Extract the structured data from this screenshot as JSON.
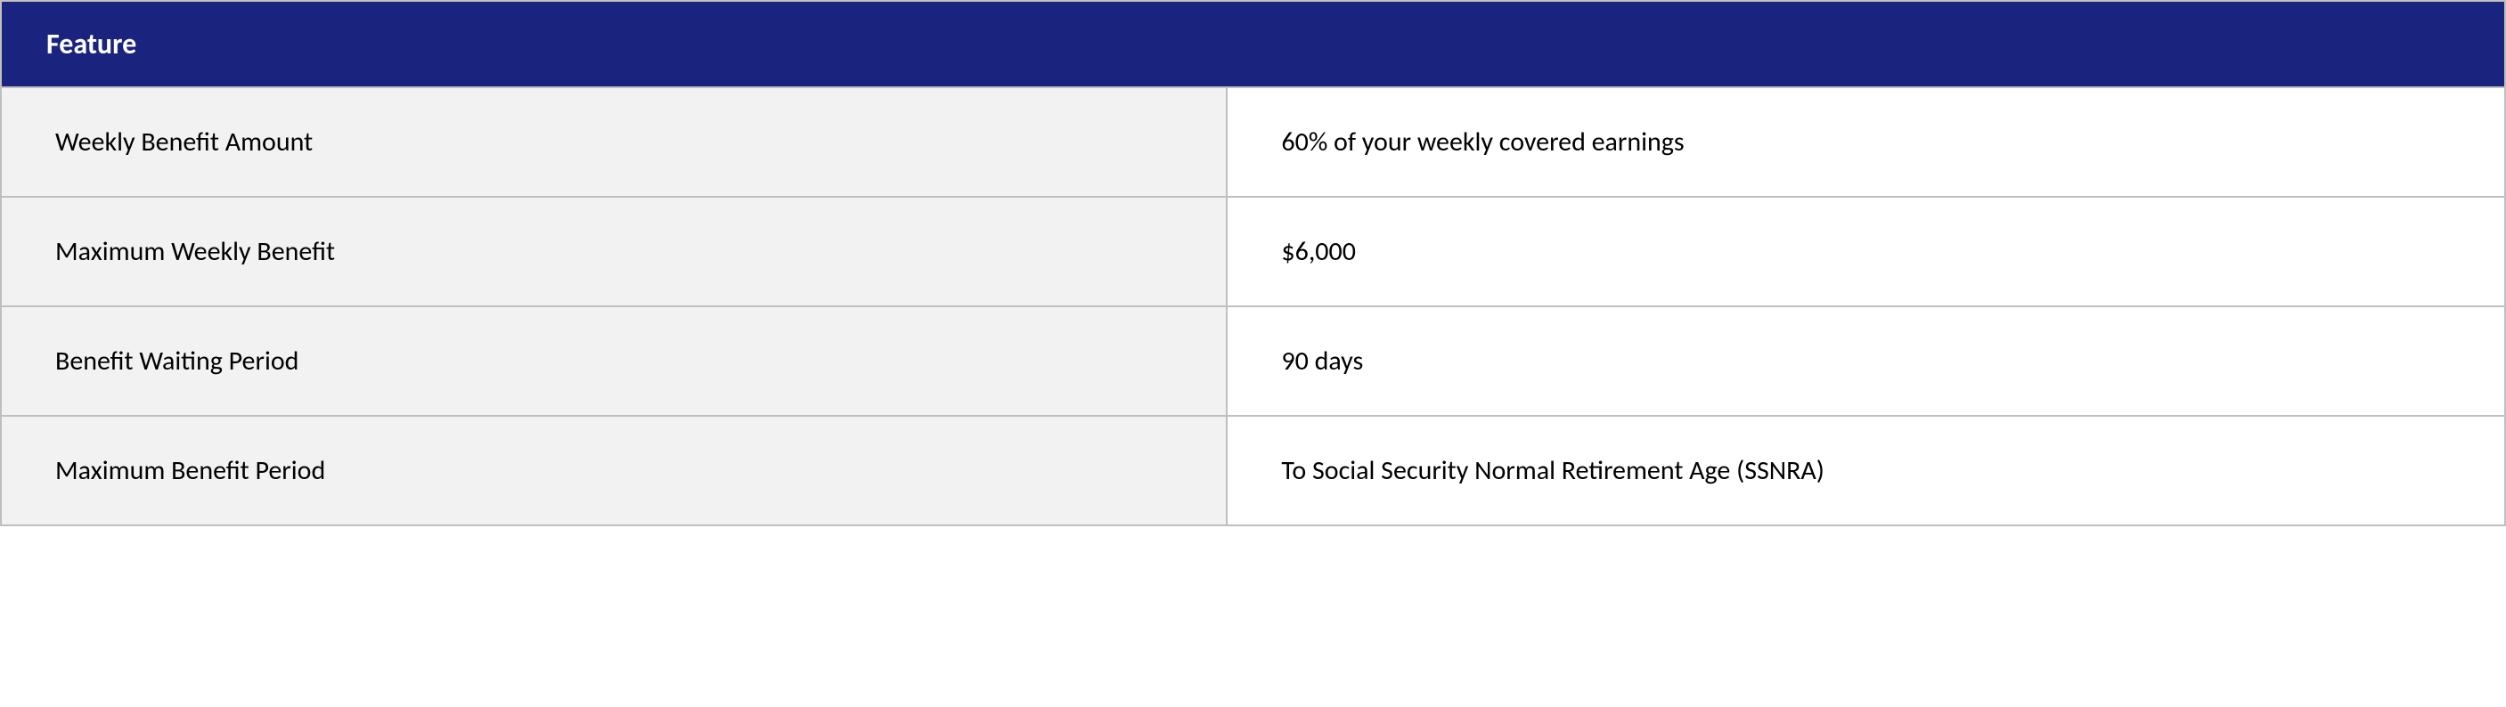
{
  "table": {
    "type": "table",
    "header_label": "Feature",
    "header_bg_color": "#1a237e",
    "header_text_color": "#ffffff",
    "header_fontsize": 32,
    "header_fontweight": 700,
    "label_bg_color": "#f2f2f2",
    "value_bg_color": "#ffffff",
    "border_color": "#bfbfbf",
    "cell_fontsize": 30,
    "cell_text_color": "#000000",
    "label_col_width_pct": 49,
    "value_col_width_pct": 51,
    "rows": [
      {
        "label": "Weekly Benefit Amount",
        "value": "60% of your weekly covered earnings"
      },
      {
        "label": "Maximum Weekly Benefit",
        "value": "$6,000"
      },
      {
        "label": "Benefit Waiting Period",
        "value": "90 days"
      },
      {
        "label": "Maximum Benefit Period",
        "value": "To Social Security Normal Retirement Age (SSNRA)"
      }
    ]
  }
}
